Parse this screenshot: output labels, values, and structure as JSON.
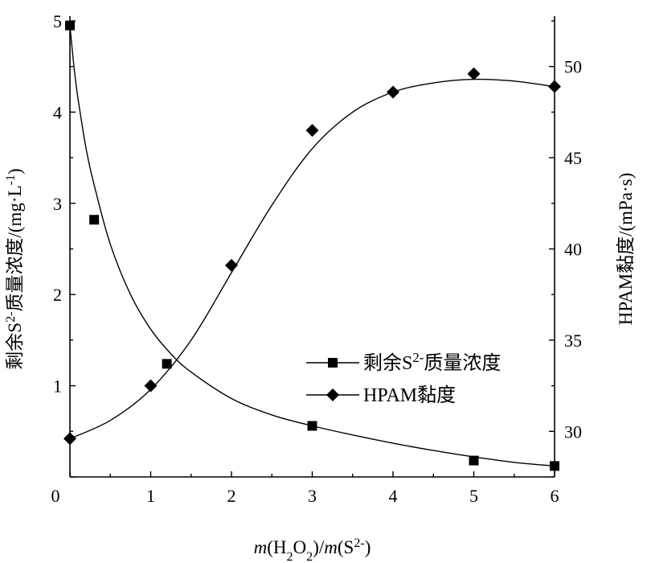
{
  "chart_data": {
    "type": "line",
    "x_axis": {
      "label_parts": [
        {
          "t": "m",
          "style": "italic"
        },
        {
          "t": "(H"
        },
        {
          "t": "2",
          "shift": "sub"
        },
        {
          "t": "O"
        },
        {
          "t": "2",
          "shift": "sub"
        },
        {
          "t": ")/"
        },
        {
          "t": "m",
          "style": "italic"
        },
        {
          "t": "(S"
        },
        {
          "t": "2-",
          "shift": "super"
        },
        {
          "t": ")"
        }
      ],
      "range": [
        0,
        6
      ],
      "ticks": [
        0,
        1,
        2,
        3,
        4,
        5,
        6
      ]
    },
    "y_left": {
      "label_parts": [
        {
          "t": "剩余S"
        },
        {
          "t": "2-",
          "shift": "super"
        },
        {
          "t": "质量浓度/(mg·L"
        },
        {
          "t": "-1",
          "shift": "super"
        },
        {
          "t": ")"
        }
      ],
      "range": [
        0,
        5
      ],
      "ticks": [
        0,
        1,
        2,
        3,
        4,
        5
      ]
    },
    "y_right": {
      "label": "HPAM黏度/(mPa·s)",
      "range": [
        27.5,
        52.5
      ],
      "ticks": [
        30,
        35,
        40,
        45,
        50
      ]
    },
    "series": [
      {
        "name_parts": [
          {
            "t": "剩余S"
          },
          {
            "t": "2-",
            "shift": "super"
          },
          {
            "t": "质量浓度"
          }
        ],
        "axis": "left",
        "marker": "square",
        "points": [
          {
            "x": 0,
            "y": 4.95
          },
          {
            "x": 0.3,
            "y": 2.82
          },
          {
            "x": 1.2,
            "y": 1.24
          },
          {
            "x": 3.0,
            "y": 0.56
          },
          {
            "x": 5.0,
            "y": 0.18
          },
          {
            "x": 6.0,
            "y": 0.12
          }
        ],
        "fit": [
          {
            "x": 0,
            "y": 4.95
          },
          {
            "x": 0.05,
            "y": 4.5
          },
          {
            "x": 0.1,
            "y": 4.15
          },
          {
            "x": 0.2,
            "y": 3.6
          },
          {
            "x": 0.3,
            "y": 3.2
          },
          {
            "x": 0.5,
            "y": 2.55
          },
          {
            "x": 0.75,
            "y": 2.0
          },
          {
            "x": 1.0,
            "y": 1.62
          },
          {
            "x": 1.25,
            "y": 1.35
          },
          {
            "x": 1.5,
            "y": 1.15
          },
          {
            "x": 2.0,
            "y": 0.86
          },
          {
            "x": 2.5,
            "y": 0.68
          },
          {
            "x": 3.0,
            "y": 0.56
          },
          {
            "x": 3.5,
            "y": 0.46
          },
          {
            "x": 4.0,
            "y": 0.37
          },
          {
            "x": 4.5,
            "y": 0.29
          },
          {
            "x": 5.0,
            "y": 0.22
          },
          {
            "x": 5.5,
            "y": 0.16
          },
          {
            "x": 6.0,
            "y": 0.12
          }
        ]
      },
      {
        "name": "HPAM黏度",
        "axis": "right",
        "marker": "diamond",
        "points": [
          {
            "x": 0,
            "y": 29.6
          },
          {
            "x": 1.0,
            "y": 32.5
          },
          {
            "x": 2.0,
            "y": 39.1
          },
          {
            "x": 3.0,
            "y": 46.5
          },
          {
            "x": 4.0,
            "y": 48.6
          },
          {
            "x": 5.0,
            "y": 49.6
          },
          {
            "x": 6.0,
            "y": 48.9
          }
        ],
        "fit": [
          {
            "x": 0,
            "y": 29.6
          },
          {
            "x": 0.5,
            "y": 30.6
          },
          {
            "x": 1.0,
            "y": 32.3
          },
          {
            "x": 1.5,
            "y": 35.0
          },
          {
            "x": 2.0,
            "y": 38.7
          },
          {
            "x": 2.5,
            "y": 42.4
          },
          {
            "x": 3.0,
            "y": 45.5
          },
          {
            "x": 3.5,
            "y": 47.5
          },
          {
            "x": 4.0,
            "y": 48.6
          },
          {
            "x": 4.5,
            "y": 49.1
          },
          {
            "x": 5.0,
            "y": 49.3
          },
          {
            "x": 5.5,
            "y": 49.2
          },
          {
            "x": 6.0,
            "y": 48.9
          }
        ]
      }
    ],
    "legend": {
      "position": "center-right"
    },
    "grid": false
  }
}
